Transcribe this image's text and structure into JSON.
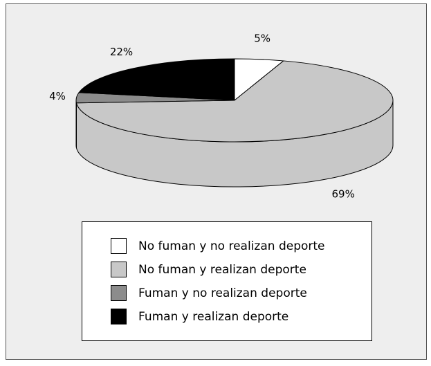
{
  "chart_data": {
    "type": "pie",
    "categories": [
      "No fuman y no realizan deporte",
      "No fuman y realizan deporte",
      "Fuman y no realizan deporte",
      "Fuman y realizan deporte"
    ],
    "values": [
      5,
      69,
      4,
      22
    ],
    "value_labels": [
      "5%",
      "69%",
      "4%",
      "22%"
    ],
    "colors": [
      "#ffffff",
      "#c8c8c8",
      "#8c8c8c",
      "#000000"
    ],
    "legend": "bottom"
  }
}
